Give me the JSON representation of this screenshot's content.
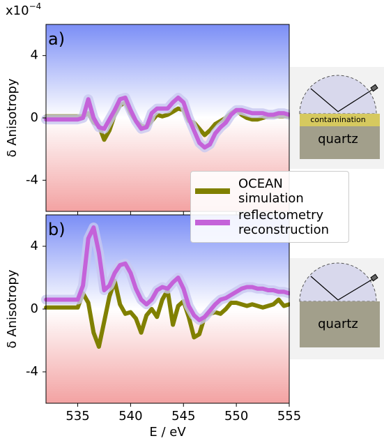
{
  "chart_data": [
    {
      "type": "line",
      "panel_label": "a)",
      "ylabel": "δ Anisotropy",
      "multiplier": {
        "base": "x10",
        "exponent": "−4"
      },
      "xlim": [
        532,
        555
      ],
      "ylim": [
        -6,
        6
      ],
      "yticks": [
        -4,
        0,
        4
      ],
      "xticks": [
        535,
        540,
        545,
        550,
        555
      ],
      "legend": "lower right",
      "x": [
        532,
        532.5,
        533,
        533.5,
        534,
        534.5,
        535,
        535.5,
        536,
        536.5,
        537,
        537.5,
        538,
        538.5,
        539,
        539.5,
        540,
        540.5,
        541,
        541.5,
        542,
        542.5,
        543,
        543.5,
        544,
        544.5,
        545,
        545.5,
        546,
        546.5,
        547,
        547.5,
        548,
        548.5,
        549,
        549.5,
        550,
        550.5,
        551,
        551.5,
        552,
        552.5,
        553,
        553.5,
        554,
        554.5,
        555
      ],
      "series": [
        {
          "name": "OCEAN simulation",
          "color": "#808000",
          "values": [
            0.1,
            0.1,
            0.1,
            0.1,
            0.1,
            0.1,
            0.1,
            0.1,
            0.3,
            -0.3,
            -0.5,
            -1.4,
            -0.8,
            0.2,
            0.8,
            1.0,
            0.3,
            -0.2,
            -0.5,
            -0.6,
            -0.2,
            0.2,
            0.1,
            0.2,
            0.4,
            0.6,
            0.5,
            -0.2,
            -0.3,
            -0.7,
            -1.1,
            -0.8,
            -0.4,
            -0.2,
            0.0,
            0.3,
            0.5,
            0.2,
            0.0,
            -0.1,
            -0.1,
            0.0,
            0.1,
            0.1,
            0.1,
            0.1,
            0.1
          ]
        },
        {
          "name": "reflectometry reconstruction",
          "color": "#c462d9",
          "values": [
            -0.1,
            -0.1,
            -0.1,
            -0.1,
            -0.1,
            -0.1,
            -0.1,
            0.0,
            1.2,
            0.0,
            -0.6,
            -0.7,
            -0.1,
            0.5,
            1.2,
            1.3,
            0.5,
            -0.2,
            -0.7,
            -0.6,
            0.3,
            0.6,
            0.6,
            0.6,
            1.0,
            1.3,
            1.0,
            0.0,
            -0.8,
            -1.6,
            -1.9,
            -1.7,
            -1.0,
            -0.6,
            -0.3,
            0.2,
            0.5,
            0.5,
            0.4,
            0.3,
            0.3,
            0.3,
            0.2,
            0.2,
            0.3,
            0.3,
            0.2
          ]
        }
      ]
    },
    {
      "type": "line",
      "panel_label": "b)",
      "ylabel": "δ Anisotropy",
      "xlabel": "E / eV",
      "xlim": [
        532,
        555
      ],
      "ylim": [
        -6,
        6
      ],
      "yticks": [
        -4,
        0,
        4
      ],
      "xticks": [
        535,
        540,
        545,
        550,
        555
      ],
      "x": [
        532,
        532.5,
        533,
        533.5,
        534,
        534.5,
        535,
        535.5,
        536,
        536.5,
        537,
        537.5,
        538,
        538.5,
        539,
        539.5,
        540,
        540.5,
        541,
        541.5,
        542,
        542.5,
        543,
        543.5,
        544,
        544.5,
        545,
        545.5,
        546,
        546.5,
        547,
        547.5,
        548,
        548.5,
        549,
        549.5,
        550,
        550.5,
        551,
        551.5,
        552,
        552.5,
        553,
        553.5,
        554,
        554.5,
        555
      ],
      "series": [
        {
          "color": "#808000",
          "values": [
            0.1,
            0.1,
            0.1,
            0.1,
            0.1,
            0.1,
            0.1,
            1.0,
            0.4,
            -1.5,
            -2.4,
            -0.8,
            0.8,
            1.8,
            0.3,
            -0.3,
            -0.2,
            -0.6,
            -1.5,
            -0.4,
            0.0,
            -0.5,
            0.6,
            1.2,
            -1.0,
            0.2,
            0.5,
            -0.5,
            -1.8,
            -1.6,
            -0.5,
            -0.3,
            -0.2,
            -0.3,
            0.0,
            0.4,
            0.4,
            0.3,
            0.2,
            0.3,
            0.2,
            0.1,
            0.2,
            0.3,
            0.6,
            0.2,
            0.3
          ]
        },
        {
          "color": "#c462d9",
          "values": [
            0.6,
            0.6,
            0.6,
            0.6,
            0.6,
            0.6,
            0.6,
            1.5,
            4.5,
            5.2,
            3.6,
            1.2,
            1.5,
            2.3,
            2.8,
            2.9,
            2.3,
            1.3,
            0.6,
            0.3,
            0.6,
            1.2,
            1.4,
            1.3,
            1.7,
            2.0,
            1.3,
            0.2,
            -0.4,
            -0.7,
            -0.5,
            -0.1,
            0.3,
            0.6,
            0.7,
            0.9,
            1.1,
            1.3,
            1.4,
            1.4,
            1.3,
            1.3,
            1.2,
            1.2,
            1.1,
            1.1,
            1.0
          ]
        }
      ]
    }
  ],
  "insets": [
    {
      "labels": [
        "contamination",
        "quartz"
      ]
    },
    {
      "labels": [
        "quartz"
      ]
    }
  ]
}
